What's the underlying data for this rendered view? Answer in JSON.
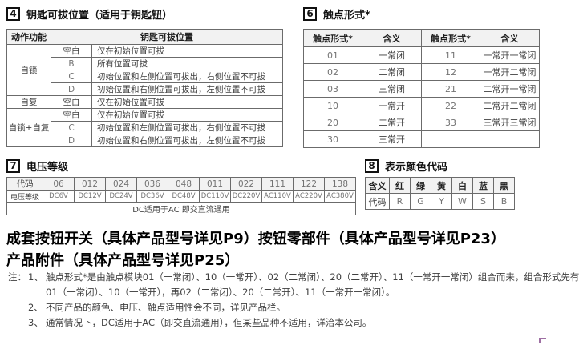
{
  "section4": {
    "num": "4",
    "title": "钥匙可拔位置（适用于钥匙钮）",
    "table": {
      "col1_header": "动作功能",
      "col2_header": "钥匙可拔位置",
      "groups": [
        {
          "name": "自锁",
          "rows": [
            [
              "空白",
              "仅在初始位置可拔"
            ],
            [
              "B",
              "所有位置可拔"
            ],
            [
              "C",
              "初始位置和左侧位置可拔出，右侧位置不可拔"
            ],
            [
              "D",
              "初始位置和右侧位置可拔出，左侧位置不可拔"
            ]
          ]
        },
        {
          "name": "自复",
          "rows": [
            [
              "空白",
              "仅在初始位置可拔"
            ]
          ]
        },
        {
          "name": "自锁+自复",
          "rows": [
            [
              "空白",
              "仅在初始位置可拔"
            ],
            [
              "C",
              "初始位置和左侧位置可拔出，右侧位置不可拔"
            ],
            [
              "D",
              "初始位置和右侧位置可拔出，左侧位置不可拔"
            ]
          ]
        }
      ]
    }
  },
  "section6": {
    "num": "6",
    "title": "触点形式*",
    "headers": [
      "触点形式*",
      "含义",
      "触点形式*",
      "含义"
    ],
    "rows": [
      [
        "01",
        "一常闭",
        "11",
        "一常开一常闭"
      ],
      [
        "02",
        "二常闭",
        "12",
        "一常开二常闭"
      ],
      [
        "03",
        "三常闭",
        "21",
        "二常开一常闭"
      ],
      [
        "10",
        "一常开",
        "22",
        "二常开二常闭"
      ],
      [
        "20",
        "二常开",
        "33",
        "三常开三常闭"
      ],
      [
        "30",
        "三常开",
        "",
        ""
      ]
    ]
  },
  "section7": {
    "num": "7",
    "title": "电压等级",
    "row1_label": "代码",
    "row2_label": "电压等级",
    "codes": [
      "06",
      "012",
      "024",
      "036",
      "048",
      "011",
      "022",
      "111",
      "122",
      "138"
    ],
    "voltages": [
      "DC6V",
      "DC12V",
      "DC24V",
      "DC36V",
      "DC48V",
      "DC110V",
      "DC220V",
      "AC110V",
      "AC220V",
      "AC380V"
    ],
    "footer": "DC适用于AC 即交直流通用"
  },
  "section8": {
    "num": "8",
    "title": "表示颜色代码",
    "row1_label": "含义",
    "row2_label": "代码",
    "colors": [
      "红",
      "绿",
      "黄",
      "白",
      "蓝",
      "黑"
    ],
    "codes": [
      "R",
      "G",
      "Y",
      "W",
      "S",
      "B"
    ]
  },
  "headline": {
    "line1": "成套按钮开关（具体产品型号详见P9）按钮零部件（具体产品型号详见P23）",
    "line2": "产品附件（具体产品型号详见P25）"
  },
  "notes": {
    "prefix": "注：",
    "items": [
      {
        "no": "1、",
        "lines": [
          "触点形式*是由触点模块01（一常闭）、10（一常开）、02（二常闭）、20（二常开）、11（一常开一常闭）组合而来，组合形式先有",
          "01（一常闭）、10（一常开），再02（二常闭）、20（二常开）、11（一常开一常闭）。"
        ]
      },
      {
        "no": "2、",
        "lines": [
          "不同产品的颜色、电压、触点适用性会不同，详见产品栏。"
        ]
      },
      {
        "no": "3、",
        "lines": [
          "通常情况下，DC适用于AC（即交直流通用），但某些品种不适用，详洽本公司。"
        ]
      }
    ]
  },
  "colors": {
    "header_bg": "#f2f2f2",
    "border": "#6b6b6b",
    "corner_mark": "#9e6fa3"
  }
}
